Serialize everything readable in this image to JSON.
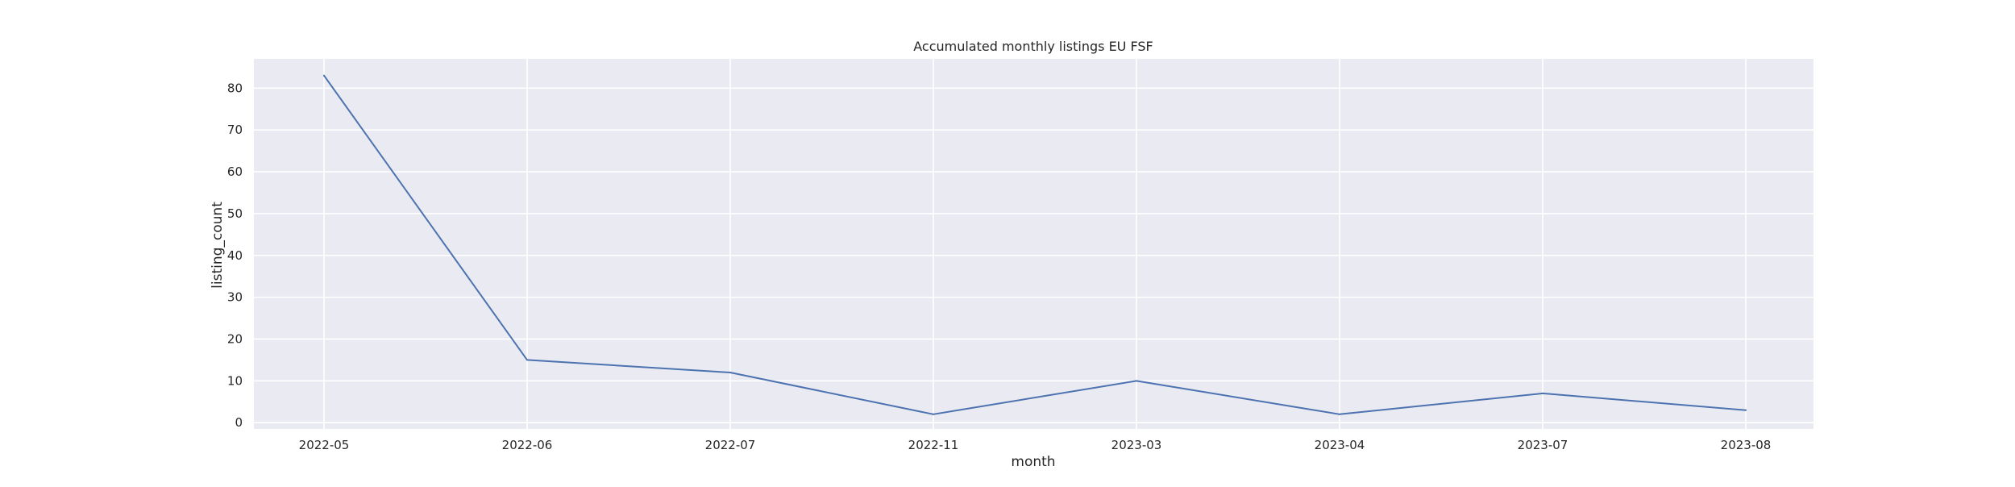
{
  "chart_data": {
    "type": "line",
    "title": "Accumulated monthly listings EU FSF",
    "xlabel": "month",
    "ylabel": "listing_count",
    "categories": [
      "2022-05",
      "2022-06",
      "2022-07",
      "2022-11",
      "2023-03",
      "2023-04",
      "2023-07",
      "2023-08"
    ],
    "series": [
      {
        "values": [
          83,
          15,
          12,
          2,
          10,
          2,
          7,
          3
        ],
        "color": "#4c72b0"
      }
    ],
    "yticks": [
      0,
      10,
      20,
      30,
      40,
      50,
      60,
      70,
      80
    ],
    "ylim": [
      -1.5,
      87
    ],
    "grid": true,
    "background_color": "#eaeaf2",
    "grid_color": "#ffffff"
  }
}
